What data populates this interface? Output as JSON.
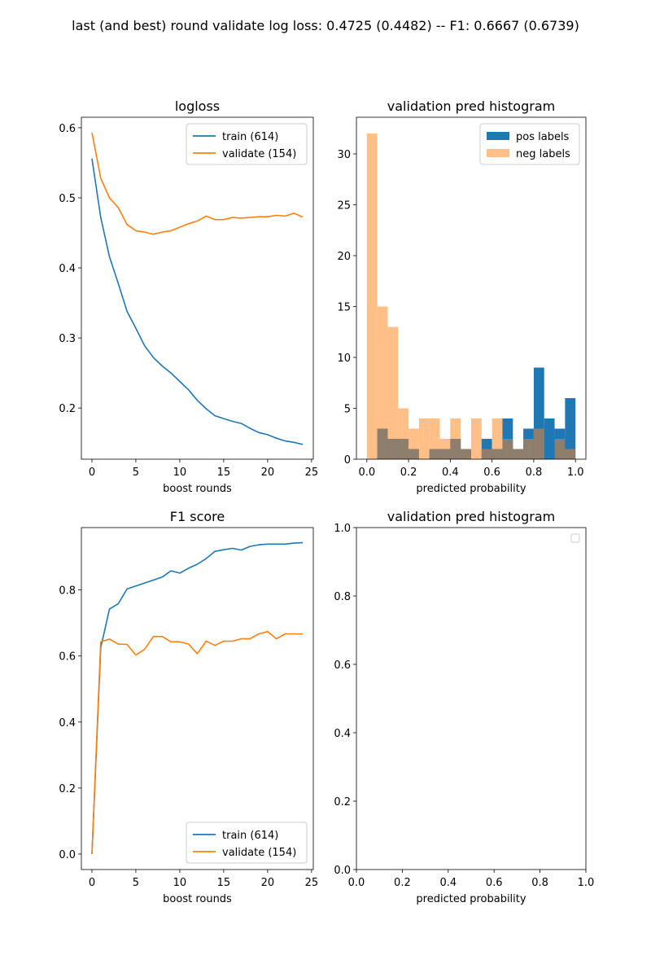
{
  "suptitle": "last (and best) round validate log loss: 0.4725 (0.4482) -- F1: 0.6667 (0.6739)",
  "colors": {
    "train": "#1f77b4",
    "validate": "#ff7f0e",
    "pos": "#1f77b4",
    "neg": "#ffbf86",
    "overlap": "#8f7e6b"
  },
  "chart_data": [
    {
      "type": "line",
      "title": "logloss",
      "xlabel": "boost rounds",
      "ylabel": "",
      "xlim": [
        -1.2,
        25.2
      ],
      "ylim": [
        0.127,
        0.615
      ],
      "xticks": [
        0,
        5,
        10,
        15,
        20,
        25
      ],
      "yticks": [
        0.2,
        0.3,
        0.4,
        0.5,
        0.6
      ],
      "xtick_labels": [
        "0",
        "5",
        "10",
        "15",
        "20",
        "25"
      ],
      "ytick_labels": [
        "0.2",
        "0.3",
        "0.4",
        "0.5",
        "0.6"
      ],
      "legend_loc": "upper right",
      "x": [
        0,
        1,
        2,
        3,
        4,
        5,
        6,
        7,
        8,
        9,
        10,
        11,
        12,
        13,
        14,
        15,
        16,
        17,
        18,
        19,
        20,
        21,
        22,
        23,
        24
      ],
      "series": [
        {
          "name": "train (614)",
          "color": "#1f77b4",
          "values": [
            0.556,
            0.472,
            0.416,
            0.378,
            0.338,
            0.314,
            0.289,
            0.272,
            0.26,
            0.25,
            0.238,
            0.226,
            0.211,
            0.199,
            0.189,
            0.185,
            0.181,
            0.178,
            0.171,
            0.165,
            0.162,
            0.157,
            0.153,
            0.151,
            0.148
          ]
        },
        {
          "name": "validate (154)",
          "color": "#ff7f0e",
          "values": [
            0.593,
            0.528,
            0.5,
            0.486,
            0.462,
            0.453,
            0.451,
            0.448,
            0.451,
            0.453,
            0.458,
            0.463,
            0.467,
            0.474,
            0.469,
            0.469,
            0.472,
            0.471,
            0.472,
            0.473,
            0.473,
            0.475,
            0.474,
            0.478,
            0.4725
          ]
        }
      ]
    },
    {
      "type": "bar",
      "subtype": "histogram",
      "title": "validation pred histogram",
      "xlabel": "predicted probability",
      "ylabel": "",
      "xlim": [
        -0.05,
        1.05
      ],
      "ylim": [
        0,
        33.6
      ],
      "xticks": [
        0.0,
        0.2,
        0.4,
        0.6,
        0.8,
        1.0
      ],
      "yticks": [
        0,
        5,
        10,
        15,
        20,
        25,
        30
      ],
      "xtick_labels": [
        "0.0",
        "0.2",
        "0.4",
        "0.6",
        "0.8",
        "1.0"
      ],
      "ytick_labels": [
        "0",
        "5",
        "10",
        "15",
        "20",
        "25",
        "30"
      ],
      "legend_loc": "upper right",
      "bin_start": 0.0,
      "bin_width": 0.05,
      "series": [
        {
          "name": "pos labels",
          "color": "#1f77b4",
          "values": [
            0,
            3,
            2,
            2,
            1,
            0,
            1,
            1,
            2,
            1,
            0,
            2,
            1,
            4,
            1,
            3,
            9,
            4,
            3,
            6
          ]
        },
        {
          "name": "neg labels",
          "color": "#ffbf86",
          "values": [
            32,
            15,
            13,
            5,
            3,
            4,
            4,
            2,
            4,
            1,
            4,
            1,
            4,
            2,
            1,
            2,
            3,
            0,
            2,
            1
          ]
        }
      ]
    },
    {
      "type": "line",
      "title": "F1 score",
      "xlabel": "boost rounds",
      "ylabel": "",
      "xlim": [
        -1.2,
        25.2
      ],
      "ylim": [
        -0.047,
        0.989
      ],
      "xticks": [
        0,
        5,
        10,
        15,
        20,
        25
      ],
      "yticks": [
        0.0,
        0.2,
        0.4,
        0.6,
        0.8
      ],
      "xtick_labels": [
        "0",
        "5",
        "10",
        "15",
        "20",
        "25"
      ],
      "ytick_labels": [
        "0.0",
        "0.2",
        "0.4",
        "0.6",
        "0.8"
      ],
      "legend_loc": "lower right",
      "x": [
        0,
        1,
        2,
        3,
        4,
        5,
        6,
        7,
        8,
        9,
        10,
        11,
        12,
        13,
        14,
        15,
        16,
        17,
        18,
        19,
        20,
        21,
        22,
        23,
        24
      ],
      "series": [
        {
          "name": "train (614)",
          "color": "#1f77b4",
          "values": [
            0.0,
            0.625,
            0.742,
            0.758,
            0.803,
            0.812,
            0.821,
            0.83,
            0.839,
            0.858,
            0.851,
            0.866,
            0.878,
            0.895,
            0.917,
            0.922,
            0.926,
            0.921,
            0.932,
            0.937,
            0.939,
            0.939,
            0.939,
            0.942,
            0.943
          ]
        },
        {
          "name": "validate (154)",
          "color": "#ff7f0e",
          "values": [
            0.0,
            0.643,
            0.651,
            0.636,
            0.635,
            0.603,
            0.62,
            0.659,
            0.659,
            0.643,
            0.643,
            0.636,
            0.607,
            0.645,
            0.632,
            0.645,
            0.645,
            0.652,
            0.652,
            0.667,
            0.674,
            0.652,
            0.667,
            0.667,
            0.6667
          ]
        }
      ]
    },
    {
      "type": "bar",
      "subtype": "histogram",
      "title": "validation pred histogram",
      "xlabel": "predicted probability",
      "ylabel": "",
      "xlim": [
        0,
        1
      ],
      "ylim": [
        0,
        1
      ],
      "xticks": [
        0.0,
        0.2,
        0.4,
        0.6,
        0.8,
        1.0
      ],
      "yticks": [
        0.0,
        0.2,
        0.4,
        0.6,
        0.8,
        1.0
      ],
      "xtick_labels": [
        "0.0",
        "0.2",
        "0.4",
        "0.6",
        "0.8",
        "1.0"
      ],
      "ytick_labels": [
        "0.0",
        "0.2",
        "0.4",
        "0.6",
        "0.8",
        "1.0"
      ],
      "legend_loc": "upper right",
      "series": []
    }
  ]
}
